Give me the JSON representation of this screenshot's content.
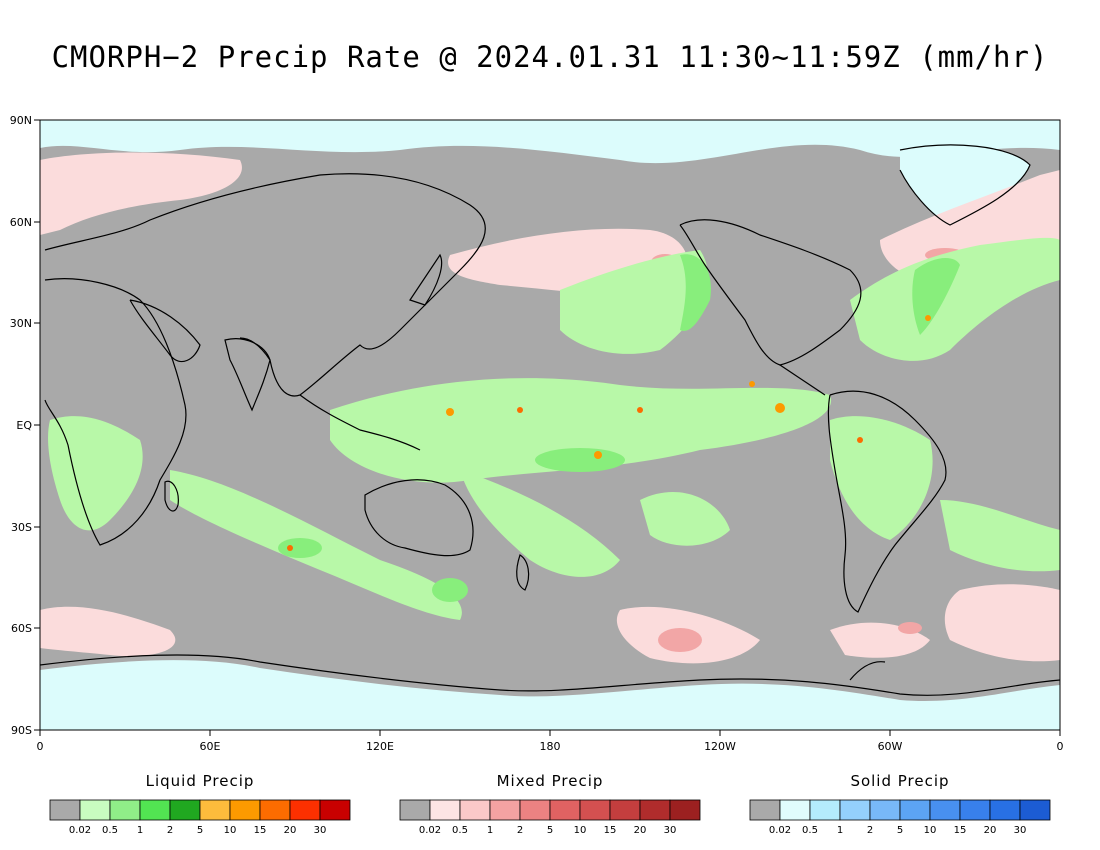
{
  "title": "CMORPH−2 Precip Rate @ 2024.01.31 11:30~11:59Z (mm/hr)",
  "map": {
    "lat_labels": [
      "90N",
      "60N",
      "30N",
      "EQ",
      "30S",
      "60S",
      "90S"
    ],
    "lon_labels": [
      "0",
      "60E",
      "120E",
      "180",
      "120W",
      "60W",
      "0"
    ],
    "colors": {
      "no_precip": "#a9a9a9",
      "ice": "#dcfcfc",
      "liquid_light": "#b8f8a8",
      "liquid_mid": "#88ee7c",
      "mixed_light": "#fbdcdc",
      "mixed_mid": "#f2a6a6"
    }
  },
  "legends": [
    {
      "title": "Liquid Precip",
      "ticks": [
        "0.02",
        "0.5",
        "1",
        "2",
        "5",
        "10",
        "15",
        "20",
        "30"
      ],
      "colors": [
        "#a9a9a9",
        "#c8fcc0",
        "#90ee88",
        "#52e452",
        "#20a820",
        "#fdbc3c",
        "#fc9a00",
        "#fc6c00",
        "#fc3000",
        "#c80000"
      ]
    },
    {
      "title": "Mixed Precip",
      "ticks": [
        "0.02",
        "0.5",
        "1",
        "2",
        "5",
        "10",
        "15",
        "20",
        "30"
      ],
      "colors": [
        "#a9a9a9",
        "#fde4e4",
        "#fbc8c8",
        "#f4a2a2",
        "#ec8282",
        "#e06262",
        "#d45050",
        "#c43e3e",
        "#b02c2c",
        "#9c2020"
      ]
    },
    {
      "title": "Solid Precip",
      "ticks": [
        "0.02",
        "0.5",
        "1",
        "2",
        "5",
        "10",
        "15",
        "20",
        "30"
      ],
      "colors": [
        "#a9a9a9",
        "#e0fcfc",
        "#b4ecfc",
        "#94d0fc",
        "#78b8f8",
        "#5ca4f4",
        "#4890f0",
        "#3880ec",
        "#2870e4",
        "#1c5cd4"
      ]
    }
  ]
}
